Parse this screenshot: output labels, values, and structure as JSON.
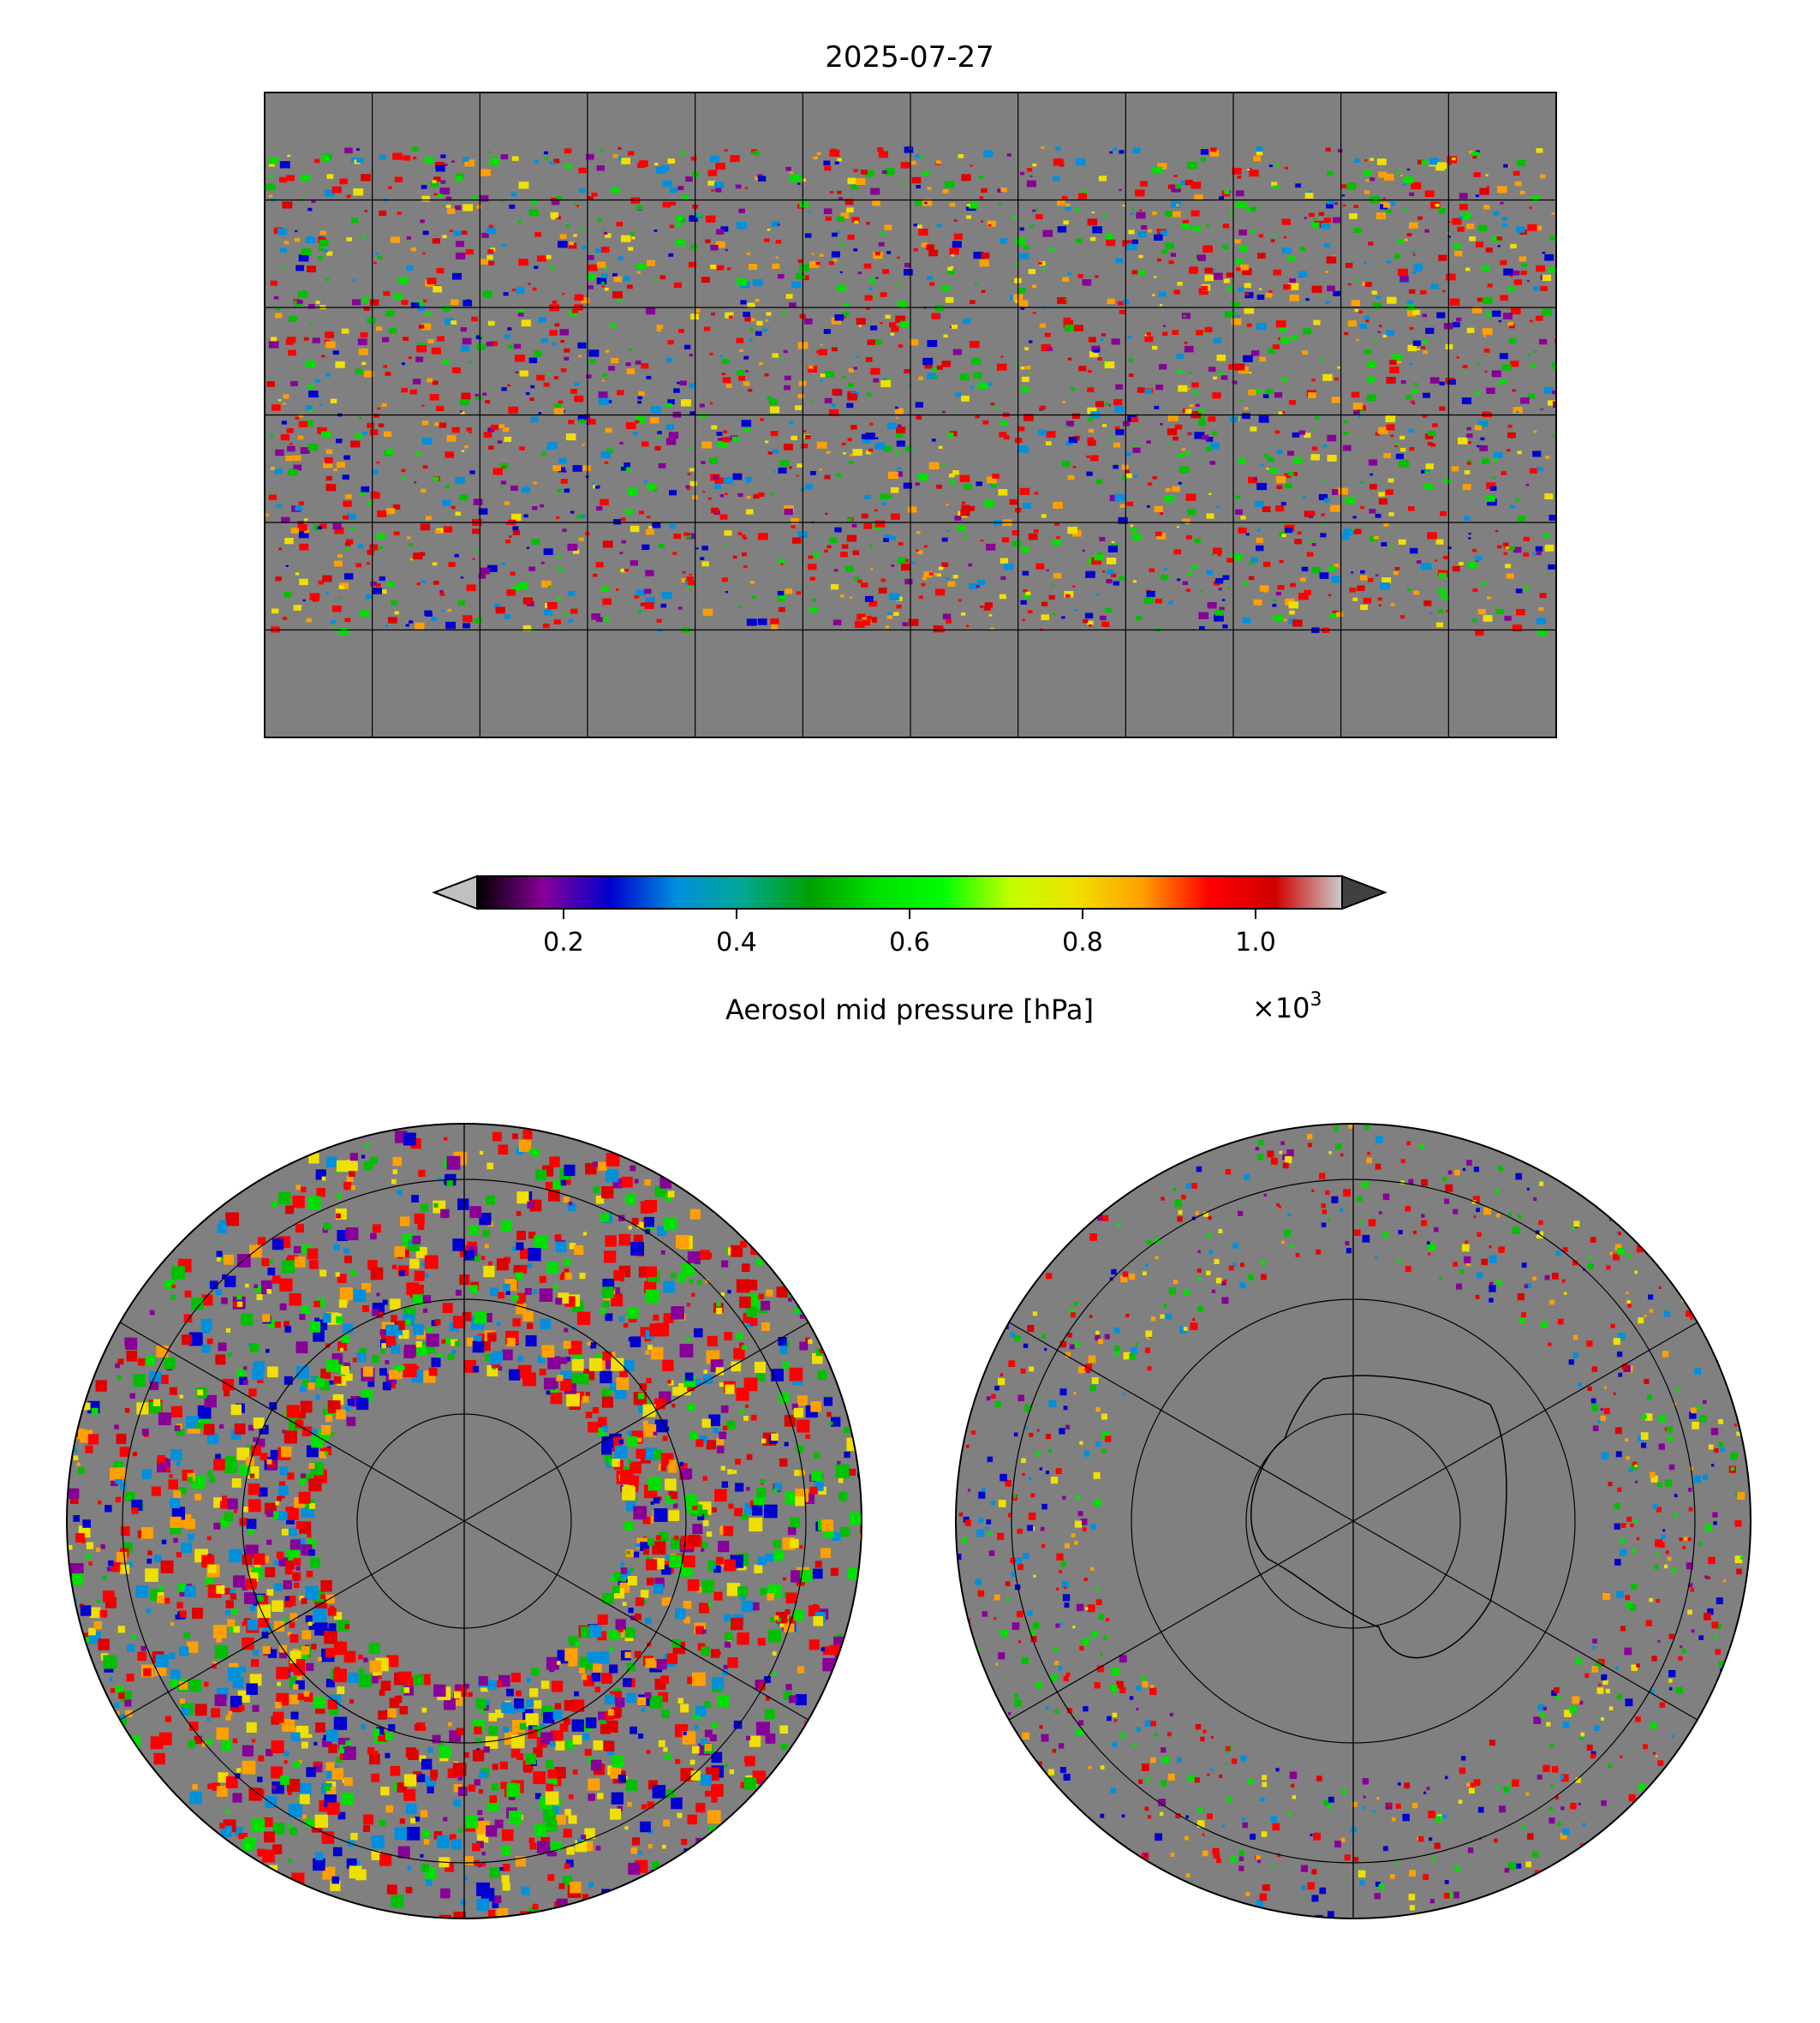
{
  "title": "2025-07-27",
  "chart_data": {
    "type": "heatmap",
    "title": "2025-07-27",
    "panels": [
      {
        "name": "global",
        "projection": "plate-carree",
        "lon_range": [
          -180,
          180
        ],
        "lat_range": [
          -90,
          90
        ],
        "grid_lon_step": 30,
        "grid_lat_step": 30
      },
      {
        "name": "north-polar",
        "projection": "north-polar-stereographic",
        "grid_lat_rings": [
          80,
          70,
          60,
          50
        ],
        "grid_lon_step": 60
      },
      {
        "name": "south-polar",
        "projection": "south-polar-stereographic",
        "grid_lat_rings": [
          -80,
          -70,
          -60,
          -50
        ],
        "grid_lon_step": 60
      }
    ],
    "colorbar": {
      "label": "Aerosol mid pressure [hPa]",
      "offset_label": "×10³",
      "offset_base": "×10",
      "offset_exp": "3",
      "range": [
        0.1,
        1.1
      ],
      "ticks": [
        0.2,
        0.4,
        0.6,
        0.8,
        1.0
      ],
      "tick_labels": [
        "0.2",
        "0.4",
        "0.6",
        "0.8",
        "1.0"
      ],
      "extend": "both",
      "under_color": "#c0c0c0",
      "over_color": "#404040",
      "stops": [
        "#000000",
        "#880098",
        "#0000d0",
        "#0090dd",
        "#00a890",
        "#00a000",
        "#00e000",
        "#00ff00",
        "#c0ff00",
        "#f0e000",
        "#ffa000",
        "#ff0000",
        "#d00000",
        "#cccccc"
      ]
    },
    "missing_color": "#808080"
  }
}
